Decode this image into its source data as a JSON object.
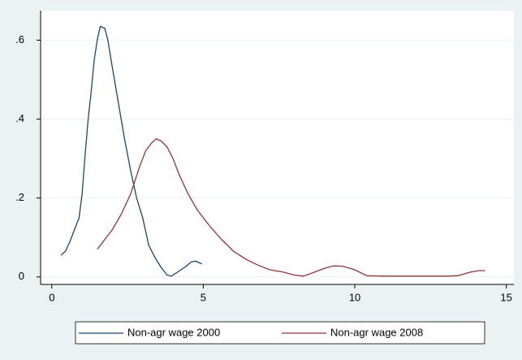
{
  "chart_data": {
    "type": "line",
    "xlim": [
      -0.37,
      15.25
    ],
    "xticks": [
      0,
      5,
      10,
      15
    ],
    "ylim": [
      -0.019,
      0.675
    ],
    "yticks": [
      0,
      {
        "value": 0.2,
        "label": ".2"
      },
      {
        "value": 0.4,
        "label": ".4"
      },
      {
        "value": 0.6,
        "label": ".6"
      }
    ],
    "grid": true,
    "legend": "bottom",
    "series": [
      {
        "name": "Non-agr wage 2000",
        "color": "#1a476f",
        "x": [
          0.3,
          0.45,
          0.6,
          0.8,
          0.9,
          1.0,
          1.1,
          1.2,
          1.3,
          1.4,
          1.5,
          1.6,
          1.75,
          1.85,
          2.0,
          2.2,
          2.4,
          2.6,
          2.8,
          3.0,
          3.2,
          3.4,
          3.6,
          3.8,
          3.95,
          4.2,
          4.4,
          4.6,
          4.75,
          4.95
        ],
        "values": [
          0.055,
          0.065,
          0.09,
          0.13,
          0.15,
          0.21,
          0.31,
          0.4,
          0.47,
          0.55,
          0.6,
          0.635,
          0.63,
          0.6,
          0.53,
          0.44,
          0.35,
          0.27,
          0.2,
          0.15,
          0.08,
          0.05,
          0.025,
          0.005,
          0.002,
          0.015,
          0.025,
          0.038,
          0.04,
          0.033
        ]
      },
      {
        "name": "Non-agr wage 2008",
        "color": "#90353b",
        "x": [
          1.5,
          1.7,
          2.0,
          2.3,
          2.6,
          2.9,
          3.1,
          3.3,
          3.45,
          3.6,
          3.8,
          4.0,
          4.2,
          4.5,
          4.8,
          5.2,
          5.6,
          6.0,
          6.4,
          6.8,
          7.2,
          7.6,
          8.0,
          8.3,
          8.6,
          9.0,
          9.3,
          9.6,
          10.0,
          10.4,
          11,
          12,
          13,
          13.4,
          13.8,
          14.1,
          14.3
        ],
        "values": [
          0.07,
          0.09,
          0.12,
          0.16,
          0.21,
          0.28,
          0.32,
          0.34,
          0.35,
          0.345,
          0.33,
          0.3,
          0.26,
          0.21,
          0.17,
          0.13,
          0.095,
          0.065,
          0.045,
          0.03,
          0.018,
          0.013,
          0.005,
          0.002,
          0.01,
          0.022,
          0.028,
          0.027,
          0.018,
          0.003,
          0.002,
          0.002,
          0.002,
          0.003,
          0.012,
          0.016,
          0.016
        ]
      }
    ]
  }
}
